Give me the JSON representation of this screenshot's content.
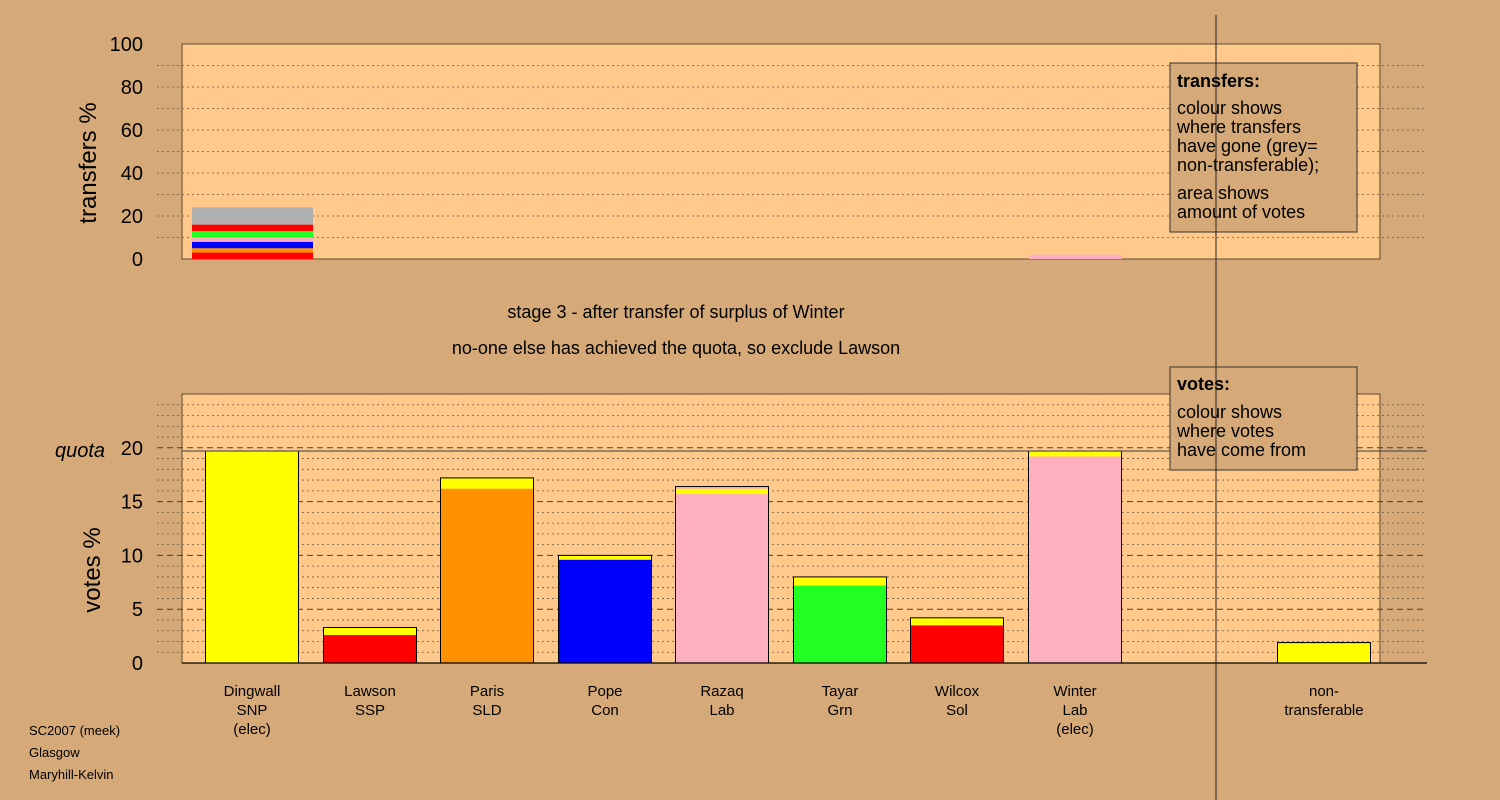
{
  "colors": {
    "background": "#d5aa78",
    "panel": "#ffc98c",
    "SNP": "#ffff00",
    "SSP": "#ff0000",
    "SLD": "#ff9000",
    "Con": "#0000ff",
    "Lab": "#ffb0c0",
    "Grn": "#22ff22",
    "Sol": "#ff0000",
    "nontransferable": "#b0b0b0"
  },
  "titles": {
    "stage": "stage 3 - after transfer of surplus of Winter",
    "note": "no-one else has achieved the quota, so exclude Lawson"
  },
  "footer": {
    "line1": "SC2007 (meek)",
    "line2": "Glasgow",
    "line3": "Maryhill-Kelvin"
  },
  "legend_transfers": {
    "title": "transfers:",
    "lines": [
      "colour shows",
      "where transfers",
      "have gone (grey=",
      "non-transferable);"
    ],
    "lines2": [
      "area shows",
      "amount of votes"
    ]
  },
  "legend_votes": {
    "title": "votes:",
    "lines": [
      "colour shows",
      "where votes",
      "have come from"
    ]
  },
  "quota_label": "quota",
  "chart_data": [
    {
      "type": "bar",
      "ylabel": "transfers %",
      "ylim": [
        0,
        100
      ],
      "yticks": [
        0,
        20,
        40,
        60,
        80,
        100
      ],
      "bars": [
        {
          "candidate": "Dingwall",
          "segments": [
            {
              "party": "SSP",
              "value": 3
            },
            {
              "party": "SLD",
              "value": 2
            },
            {
              "party": "Con",
              "value": 3
            },
            {
              "party": "Lab",
              "value": 2
            },
            {
              "party": "Grn",
              "value": 3
            },
            {
              "party": "Sol",
              "value": 3
            },
            {
              "party": "nontransferable",
              "value": 8
            }
          ]
        },
        {
          "candidate": "Winter",
          "segments": [
            {
              "party": "Lab",
              "value": 2
            }
          ]
        }
      ]
    },
    {
      "type": "bar",
      "ylabel": "votes %",
      "ylim": [
        0,
        25
      ],
      "yticks": [
        0,
        5,
        10,
        15,
        20
      ],
      "quota": 19.7,
      "categories": [
        {
          "name": "Dingwall",
          "party": "SNP",
          "note": "(elec)"
        },
        {
          "name": "Lawson",
          "party": "SSP",
          "note": ""
        },
        {
          "name": "Paris",
          "party": "SLD",
          "note": ""
        },
        {
          "name": "Pope",
          "party": "Con",
          "note": ""
        },
        {
          "name": "Razaq",
          "party": "Lab",
          "note": ""
        },
        {
          "name": "Tayar",
          "party": "Grn",
          "note": ""
        },
        {
          "name": "Wilcox",
          "party": "Sol",
          "note": ""
        },
        {
          "name": "Winter",
          "party": "Lab",
          "note": "(elec)"
        },
        {
          "name": "non-",
          "party": "transferable",
          "note": ""
        }
      ],
      "bars": [
        {
          "candidate": "Dingwall",
          "segments": [
            {
              "party": "SNP",
              "value": 19.7
            }
          ]
        },
        {
          "candidate": "Lawson",
          "segments": [
            {
              "party": "SSP",
              "value": 2.6
            },
            {
              "party": "SNP",
              "value": 0.7
            }
          ]
        },
        {
          "candidate": "Paris",
          "segments": [
            {
              "party": "SLD",
              "value": 16.2
            },
            {
              "party": "SNP",
              "value": 1.0
            }
          ]
        },
        {
          "candidate": "Pope",
          "segments": [
            {
              "party": "Con",
              "value": 9.6
            },
            {
              "party": "SNP",
              "value": 0.4
            }
          ]
        },
        {
          "candidate": "Razaq",
          "segments": [
            {
              "party": "Lab",
              "value": 15.7
            },
            {
              "party": "SNP",
              "value": 0.5
            },
            {
              "party": "Lab",
              "value": 0.2
            }
          ]
        },
        {
          "candidate": "Tayar",
          "segments": [
            {
              "party": "Grn",
              "value": 7.2
            },
            {
              "party": "SNP",
              "value": 0.8
            }
          ]
        },
        {
          "candidate": "Wilcox",
          "segments": [
            {
              "party": "Sol",
              "value": 3.5
            },
            {
              "party": "SNP",
              "value": 0.7
            }
          ]
        },
        {
          "candidate": "Winter",
          "segments": [
            {
              "party": "Lab",
              "value": 19.2
            },
            {
              "party": "SNP",
              "value": 0.5
            }
          ]
        },
        {
          "candidate": "non-transferable",
          "segments": [
            {
              "party": "SNP",
              "value": 1.8
            },
            {
              "party": "Lab",
              "value": 0.1
            }
          ]
        }
      ]
    }
  ]
}
